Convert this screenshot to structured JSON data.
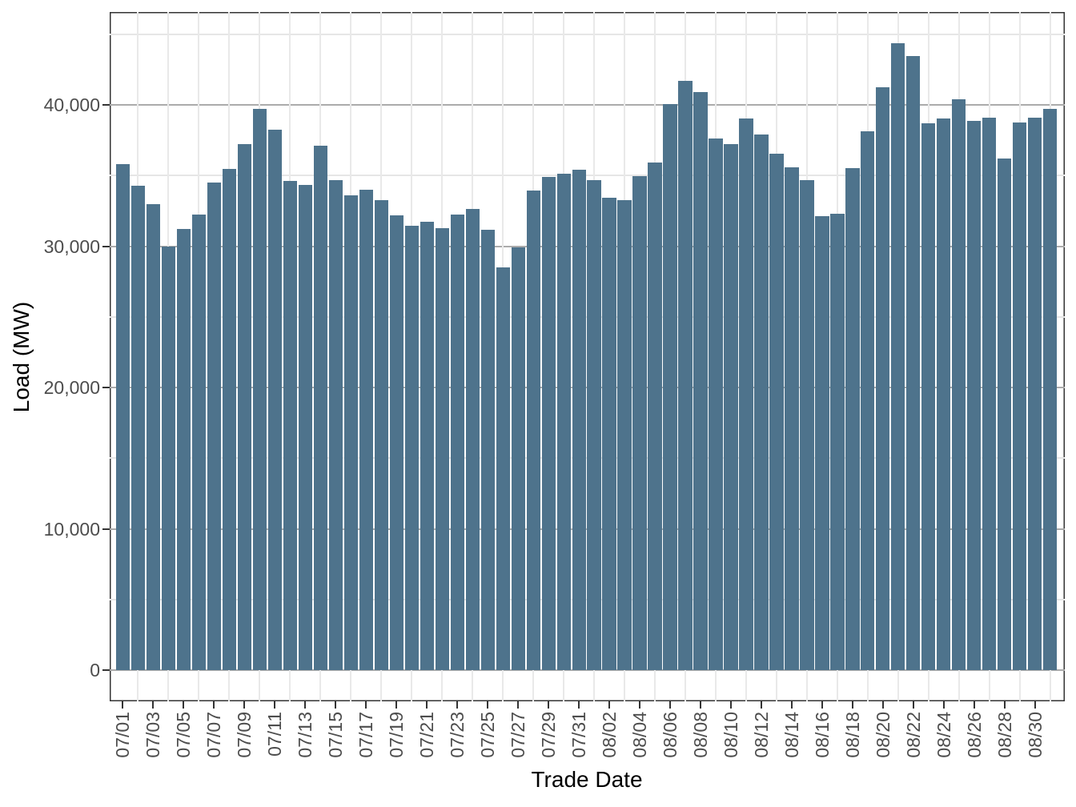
{
  "chart_data": {
    "type": "bar",
    "title": "",
    "xlabel": "Trade Date",
    "ylabel": "Load (MW)",
    "categories": [
      "07/01",
      "07/02",
      "07/03",
      "07/04",
      "07/05",
      "07/06",
      "07/07",
      "07/08",
      "07/09",
      "07/10",
      "07/11",
      "07/12",
      "07/13",
      "07/14",
      "07/15",
      "07/16",
      "07/17",
      "07/18",
      "07/19",
      "07/20",
      "07/21",
      "07/22",
      "07/23",
      "07/24",
      "07/25",
      "07/26",
      "07/27",
      "07/28",
      "07/29",
      "07/30",
      "07/31",
      "08/01",
      "08/02",
      "08/03",
      "08/04",
      "08/05",
      "08/06",
      "08/07",
      "08/08",
      "08/09",
      "08/10",
      "08/11",
      "08/12",
      "08/13",
      "08/14",
      "08/15",
      "08/16",
      "08/17",
      "08/18",
      "08/19",
      "08/20",
      "08/21",
      "08/22",
      "08/23",
      "08/24",
      "08/25",
      "08/26",
      "08/27",
      "08/28",
      "08/29",
      "08/30",
      "08/31"
    ],
    "values": [
      35800,
      34250,
      33000,
      30000,
      31200,
      32250,
      34500,
      35450,
      37200,
      39700,
      38250,
      34600,
      34350,
      37100,
      34650,
      33600,
      34000,
      33250,
      32200,
      31450,
      31700,
      31250,
      32250,
      32650,
      31150,
      28500,
      29900,
      33950,
      34900,
      35100,
      35400,
      34700,
      33450,
      33250,
      34950,
      35900,
      40050,
      41700,
      40900,
      37600,
      37250,
      39050,
      37900,
      36550,
      35600,
      34700,
      32150,
      32300,
      35550,
      38150,
      41250,
      44350,
      43450,
      38700,
      39050,
      40400,
      38850,
      39100,
      36200,
      38750,
      39100,
      39700
    ],
    "x_tick_labels": [
      "07/01",
      "07/03",
      "07/05",
      "07/07",
      "07/09",
      "07/11",
      "07/13",
      "07/15",
      "07/17",
      "07/19",
      "07/21",
      "07/23",
      "07/25",
      "07/27",
      "07/29",
      "07/31",
      "08/02",
      "08/04",
      "08/06",
      "08/08",
      "08/10",
      "08/12",
      "08/14",
      "08/16",
      "08/18",
      "08/20",
      "08/22",
      "08/24",
      "08/26",
      "08/28",
      "08/30"
    ],
    "y_ticks": [
      0,
      10000,
      20000,
      30000,
      40000
    ],
    "y_tick_labels": [
      "0",
      "10,000",
      "20,000",
      "30,000",
      "40,000"
    ],
    "y_minor_ticks": [
      5000,
      15000,
      25000,
      35000,
      45000
    ],
    "ylim": [
      0,
      46600
    ],
    "grid": true,
    "legend": false,
    "bar_color": "#4e738c",
    "grid_major_color": "#ababab",
    "grid_minor_color": "#e6e6e6",
    "border_color": "#333333",
    "tick_label_color": "#4d4d4d",
    "axis_title_color": "#000000",
    "background_color": "#ffffff"
  }
}
